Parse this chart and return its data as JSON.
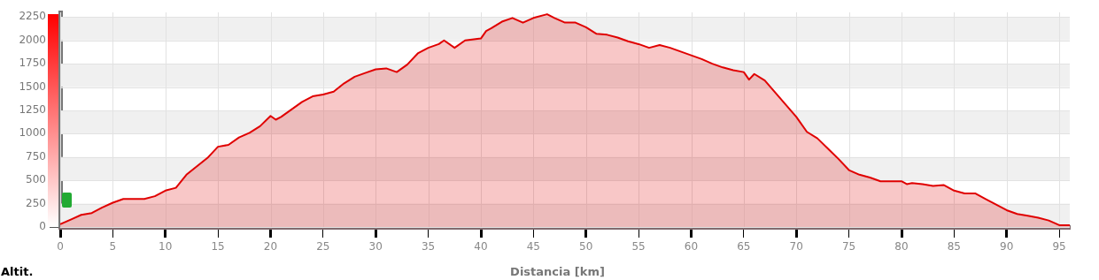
{
  "chart_data": {
    "type": "area",
    "xlabel": "Distancia [km]",
    "ylabel": "Altit.",
    "color": "#e00000",
    "xlim": [
      0,
      96
    ],
    "xticks": [
      0,
      5,
      10,
      15,
      20,
      25,
      30,
      35,
      40,
      45,
      50,
      55,
      60,
      65,
      70,
      75,
      80,
      85,
      90,
      95
    ],
    "ylim": [
      0,
      2300
    ],
    "yticks": [
      0,
      250,
      500,
      750,
      1000,
      1250,
      1500,
      1750,
      2000,
      2250
    ],
    "grid": true,
    "marker": "none",
    "x": [
      0,
      1,
      2,
      3,
      4,
      5,
      6,
      7,
      8,
      9,
      10,
      11,
      12,
      13,
      14,
      15,
      16,
      17,
      18,
      19,
      20,
      20.5,
      21,
      22,
      23,
      24,
      25,
      26,
      27,
      28,
      29,
      30,
      31,
      32,
      33,
      34,
      35,
      36,
      36.5,
      37.5,
      38.5,
      40,
      40.5,
      41,
      42,
      43,
      44,
      45,
      46.3,
      47,
      48,
      49,
      50,
      51,
      52,
      53,
      54,
      55,
      56,
      57,
      58,
      59,
      60,
      61,
      62,
      63,
      64,
      65,
      65.5,
      66,
      67,
      68,
      69,
      70,
      71,
      72,
      73,
      74,
      75,
      76,
      77,
      78,
      79,
      80,
      80.5,
      81,
      82,
      83,
      84,
      85,
      86,
      87,
      88,
      89,
      90,
      91,
      92,
      93,
      94,
      95,
      96
    ],
    "values": [
      30,
      80,
      130,
      150,
      210,
      260,
      300,
      300,
      300,
      330,
      390,
      420,
      560,
      650,
      740,
      860,
      880,
      960,
      1010,
      1080,
      1190,
      1150,
      1180,
      1260,
      1340,
      1400,
      1420,
      1450,
      1540,
      1610,
      1650,
      1690,
      1700,
      1660,
      1740,
      1860,
      1920,
      1960,
      2000,
      1920,
      2000,
      2020,
      2100,
      2130,
      2200,
      2240,
      2190,
      2240,
      2280,
      2240,
      2190,
      2190,
      2140,
      2070,
      2060,
      2030,
      1990,
      1960,
      1920,
      1950,
      1920,
      1880,
      1840,
      1800,
      1750,
      1710,
      1680,
      1660,
      1580,
      1640,
      1570,
      1440,
      1310,
      1180,
      1020,
      950,
      840,
      730,
      610,
      560,
      530,
      490,
      490,
      490,
      460,
      470,
      460,
      440,
      450,
      390,
      360,
      360,
      300,
      240,
      180,
      140,
      120,
      100,
      70,
      20,
      20
    ]
  }
}
